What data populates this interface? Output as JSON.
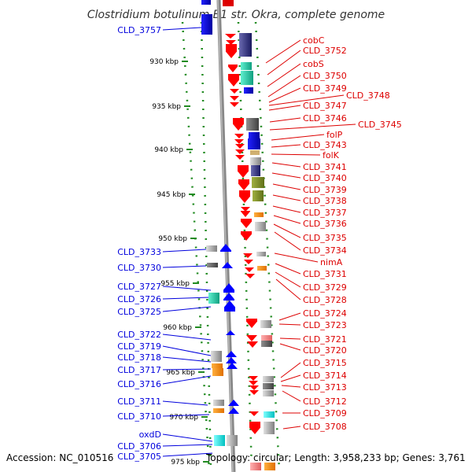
{
  "title": "Clostridium botulinum B1 str. Okra, complete genome",
  "footer": {
    "accession": "Accession: NC_010516",
    "topology": "Topology: circular; Length: 3,958,233 bp; Genes: 3,761"
  },
  "colors": {
    "left_label": "#0000dd",
    "right_label": "#dd0000",
    "tick_dots": "#228b22",
    "backbone": "#888888"
  },
  "ticks": [
    "930 kbp",
    "935 kbp",
    "940 kbp",
    "945 kbp",
    "950 kbp",
    "955 kbp",
    "960 kbp",
    "965 kbp",
    "970 kbp",
    "975 kbp"
  ],
  "left_genes": [
    "CLD_3757",
    "CLD_3733",
    "CLD_3730",
    "CLD_3727",
    "CLD_3726",
    "CLD_3725",
    "CLD_3722",
    "CLD_3719",
    "CLD_3718",
    "CLD_3717",
    "CLD_3716",
    "CLD_3711",
    "CLD_3710",
    "oxdD",
    "CLD_3706",
    "CLD_3705"
  ],
  "right_genes": [
    "cobC",
    "CLD_3752",
    "cobS",
    "CLD_3750",
    "CLD_3749",
    "CLD_3748",
    "CLD_3747",
    "CLD_3746",
    "CLD_3745",
    "folP",
    "CLD_3743",
    "folK",
    "CLD_3741",
    "CLD_3740",
    "CLD_3739",
    "CLD_3738",
    "CLD_3737",
    "CLD_3736",
    "CLD_3735",
    "CLD_3734",
    "nimA",
    "CLD_3731",
    "CLD_3729",
    "CLD_3728",
    "CLD_3724",
    "CLD_3723",
    "CLD_3721",
    "CLD_3720",
    "CLD_3715",
    "CLD_3714",
    "CLD_3713",
    "CLD_3712",
    "CLD_3709",
    "CLD_3708"
  ]
}
